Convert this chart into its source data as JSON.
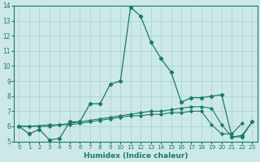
{
  "title": "",
  "xlabel": "Humidex (Indice chaleur)",
  "xlim": [
    -0.5,
    23.5
  ],
  "ylim": [
    5,
    14
  ],
  "xticks": [
    0,
    1,
    2,
    3,
    4,
    5,
    6,
    7,
    8,
    9,
    10,
    11,
    12,
    13,
    14,
    15,
    16,
    17,
    18,
    19,
    20,
    21,
    22,
    23
  ],
  "yticks": [
    5,
    6,
    7,
    8,
    9,
    10,
    11,
    12,
    13,
    14
  ],
  "background_color": "#cce8e8",
  "grid_color": "#aed4d4",
  "line_color": "#1a7a6a",
  "line1": [
    6.0,
    5.5,
    5.8,
    5.1,
    5.2,
    6.3,
    6.3,
    7.5,
    7.5,
    8.8,
    9.0,
    13.9,
    13.3,
    11.6,
    10.5,
    9.6,
    7.6,
    7.9,
    7.9,
    8.0,
    8.1,
    5.3,
    5.3,
    6.3
  ],
  "line2": [
    6.0,
    6.0,
    6.1,
    6.1,
    6.2,
    6.3,
    6.4,
    6.5,
    6.6,
    6.7,
    6.8,
    6.9,
    7.0,
    7.0,
    7.1,
    7.2,
    7.3,
    7.3,
    7.2,
    6.1,
    5.3,
    5.4,
    6.3
  ],
  "line2_x": [
    0,
    1,
    3,
    4,
    5,
    6,
    7,
    8,
    9,
    10,
    11,
    12,
    13,
    14,
    15,
    16,
    17,
    18,
    19,
    20,
    21,
    22,
    23
  ],
  "line3": [
    6.0,
    6.0,
    6.0,
    6.0,
    6.1,
    6.1,
    6.2,
    6.3,
    6.4,
    6.5,
    6.6,
    6.7,
    6.7,
    6.8,
    6.8,
    6.9,
    6.9,
    7.0,
    7.0,
    6.1,
    5.5,
    5.5,
    6.2
  ],
  "line3_x": [
    0,
    1,
    2,
    3,
    4,
    5,
    6,
    7,
    8,
    9,
    10,
    11,
    12,
    13,
    14,
    15,
    16,
    17,
    18,
    19,
    20,
    21,
    22
  ]
}
